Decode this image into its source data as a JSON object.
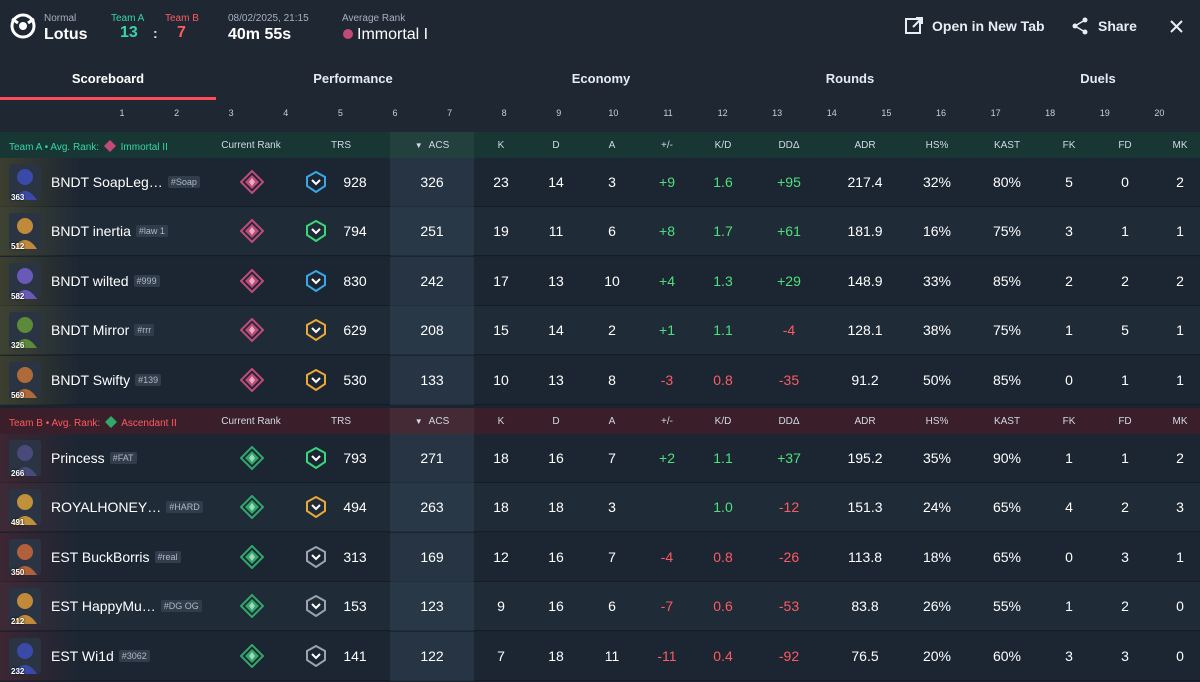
{
  "header": {
    "mode": "Normal",
    "map": "Lotus",
    "team_a_label": "Team A",
    "team_b_label": "Team B",
    "team_a_score": "13",
    "team_b_score": "7",
    "score_sep": ":",
    "datetime": "08/02/2025, 21:15",
    "duration": "40m 55s",
    "avg_rank_label": "Average Rank",
    "avg_rank_value": "Immortal I",
    "open_new_tab": "Open in New Tab",
    "share": "Share"
  },
  "tabs": [
    {
      "label": "Scoreboard",
      "active": true
    },
    {
      "label": "Performance",
      "active": false
    },
    {
      "label": "Economy",
      "active": false
    },
    {
      "label": "Rounds",
      "active": false
    },
    {
      "label": "Duels",
      "active": false
    }
  ],
  "round_numbers": [
    "1",
    "2",
    "3",
    "4",
    "5",
    "6",
    "7",
    "8",
    "9",
    "10",
    "11",
    "12",
    "13",
    "14",
    "15",
    "16",
    "17",
    "18",
    "19",
    "20"
  ],
  "columns": {
    "current_rank": "Current Rank",
    "trs": "TRS",
    "acs": "ACS",
    "k": "K",
    "d": "D",
    "a": "A",
    "pm": "+/-",
    "kd": "K/D",
    "dd": "DDΔ",
    "adr": "ADR",
    "hs": "HS%",
    "kast": "KAST",
    "fk": "FK",
    "fd": "FD",
    "mk": "MK"
  },
  "team_a": {
    "name": "Team A",
    "bullet": "•",
    "avg_label": "Avg. Rank:",
    "avg_rank": "Immortal II",
    "accent": "#37d6a6",
    "players": [
      {
        "level": "363",
        "name": "BNDT SoapLeg…",
        "tag": "#Soap",
        "rank": "immortal",
        "trs_tier": "blue",
        "trs": "928",
        "acs": "326",
        "k": "23",
        "d": "14",
        "a": "3",
        "pm": "+9",
        "kd": "1.6",
        "dd": "+95",
        "adr": "217.4",
        "hs": "32%",
        "kast": "80%",
        "fk": "5",
        "fd": "0",
        "mk": "2",
        "agent_color": "#3a4aa8"
      },
      {
        "level": "512",
        "name": "BNDT inertia",
        "tag": "#law 1",
        "rank": "immortal",
        "trs_tier": "green",
        "trs": "794",
        "acs": "251",
        "k": "19",
        "d": "11",
        "a": "6",
        "pm": "+8",
        "kd": "1.7",
        "dd": "+61",
        "adr": "181.9",
        "hs": "16%",
        "kast": "75%",
        "fk": "3",
        "fd": "1",
        "mk": "1",
        "agent_color": "#c08a3a"
      },
      {
        "level": "582",
        "name": "BNDT wilted",
        "tag": "#999",
        "rank": "immortal",
        "trs_tier": "blue",
        "trs": "830",
        "acs": "242",
        "k": "17",
        "d": "13",
        "a": "10",
        "pm": "+4",
        "kd": "1.3",
        "dd": "+29",
        "adr": "148.9",
        "hs": "33%",
        "kast": "85%",
        "fk": "2",
        "fd": "2",
        "mk": "2",
        "agent_color": "#6a5ab8"
      },
      {
        "level": "326",
        "name": "BNDT Mirror",
        "tag": "#rrr",
        "rank": "immortal",
        "trs_tier": "gold",
        "trs": "629",
        "acs": "208",
        "k": "15",
        "d": "14",
        "a": "2",
        "pm": "+1",
        "kd": "1.1",
        "dd": "-4",
        "adr": "128.1",
        "hs": "38%",
        "kast": "75%",
        "fk": "1",
        "fd": "5",
        "mk": "1",
        "agent_color": "#5a8a3a"
      },
      {
        "level": "569",
        "name": "BNDT Swifty",
        "tag": "#139",
        "rank": "immortal",
        "trs_tier": "gold",
        "trs": "530",
        "acs": "133",
        "k": "10",
        "d": "13",
        "a": "8",
        "pm": "-3",
        "kd": "0.8",
        "dd": "-35",
        "adr": "91.2",
        "hs": "50%",
        "kast": "85%",
        "fk": "0",
        "fd": "1",
        "mk": "1",
        "agent_color": "#b06a3a"
      }
    ]
  },
  "team_b": {
    "name": "Team B",
    "bullet": "•",
    "avg_label": "Avg. Rank:",
    "avg_rank": "Ascendant II",
    "accent": "#ff5a5f",
    "players": [
      {
        "level": "266",
        "name": "Princess",
        "tag": "#FAT",
        "rank": "ascendant",
        "trs_tier": "green",
        "trs": "793",
        "acs": "271",
        "k": "18",
        "d": "16",
        "a": "7",
        "pm": "+2",
        "kd": "1.1",
        "dd": "+37",
        "adr": "195.2",
        "hs": "35%",
        "kast": "90%",
        "fk": "1",
        "fd": "1",
        "mk": "2",
        "agent_color": "#4a4a7a"
      },
      {
        "level": "491",
        "name": "ROYALHONEY…",
        "tag": "#HARD",
        "rank": "ascendant",
        "trs_tier": "gold",
        "trs": "494",
        "acs": "263",
        "k": "18",
        "d": "18",
        "a": "3",
        "pm": "",
        "kd": "1.0",
        "dd": "-12",
        "adr": "151.3",
        "hs": "24%",
        "kast": "65%",
        "fk": "4",
        "fd": "2",
        "mk": "3",
        "agent_color": "#c0903a"
      },
      {
        "level": "350",
        "name": "EST BuckBorris",
        "tag": "#real",
        "rank": "ascendant",
        "trs_tier": "grey",
        "trs": "313",
        "acs": "169",
        "k": "12",
        "d": "16",
        "a": "7",
        "pm": "-4",
        "kd": "0.8",
        "dd": "-26",
        "adr": "113.8",
        "hs": "18%",
        "kast": "65%",
        "fk": "0",
        "fd": "3",
        "mk": "1",
        "agent_color": "#b0603a"
      },
      {
        "level": "212",
        "name": "EST HappyMu…",
        "tag": "#DG OG",
        "rank": "ascendant",
        "trs_tier": "grey",
        "trs": "153",
        "acs": "123",
        "k": "9",
        "d": "16",
        "a": "6",
        "pm": "-7",
        "kd": "0.6",
        "dd": "-53",
        "adr": "83.8",
        "hs": "26%",
        "kast": "55%",
        "fk": "1",
        "fd": "2",
        "mk": "0",
        "agent_color": "#c08a3a"
      },
      {
        "level": "232",
        "name": "EST Wi1d",
        "tag": "#3062",
        "rank": "ascendant",
        "trs_tier": "grey",
        "trs": "141",
        "acs": "122",
        "k": "7",
        "d": "18",
        "a": "11",
        "pm": "-11",
        "kd": "0.4",
        "dd": "-92",
        "adr": "76.5",
        "hs": "20%",
        "kast": "60%",
        "fk": "3",
        "fd": "3",
        "mk": "0",
        "agent_color": "#3a4aa8"
      }
    ]
  },
  "colors": {
    "team_a": "#37d6a6",
    "team_b": "#ff5a5f",
    "positive": "#4ee07a",
    "negative": "#ff5a64",
    "tab_underline": "#ff4a5a",
    "immortal_rank": "#c24a78",
    "ascendant_rank": "#2fa86a"
  }
}
